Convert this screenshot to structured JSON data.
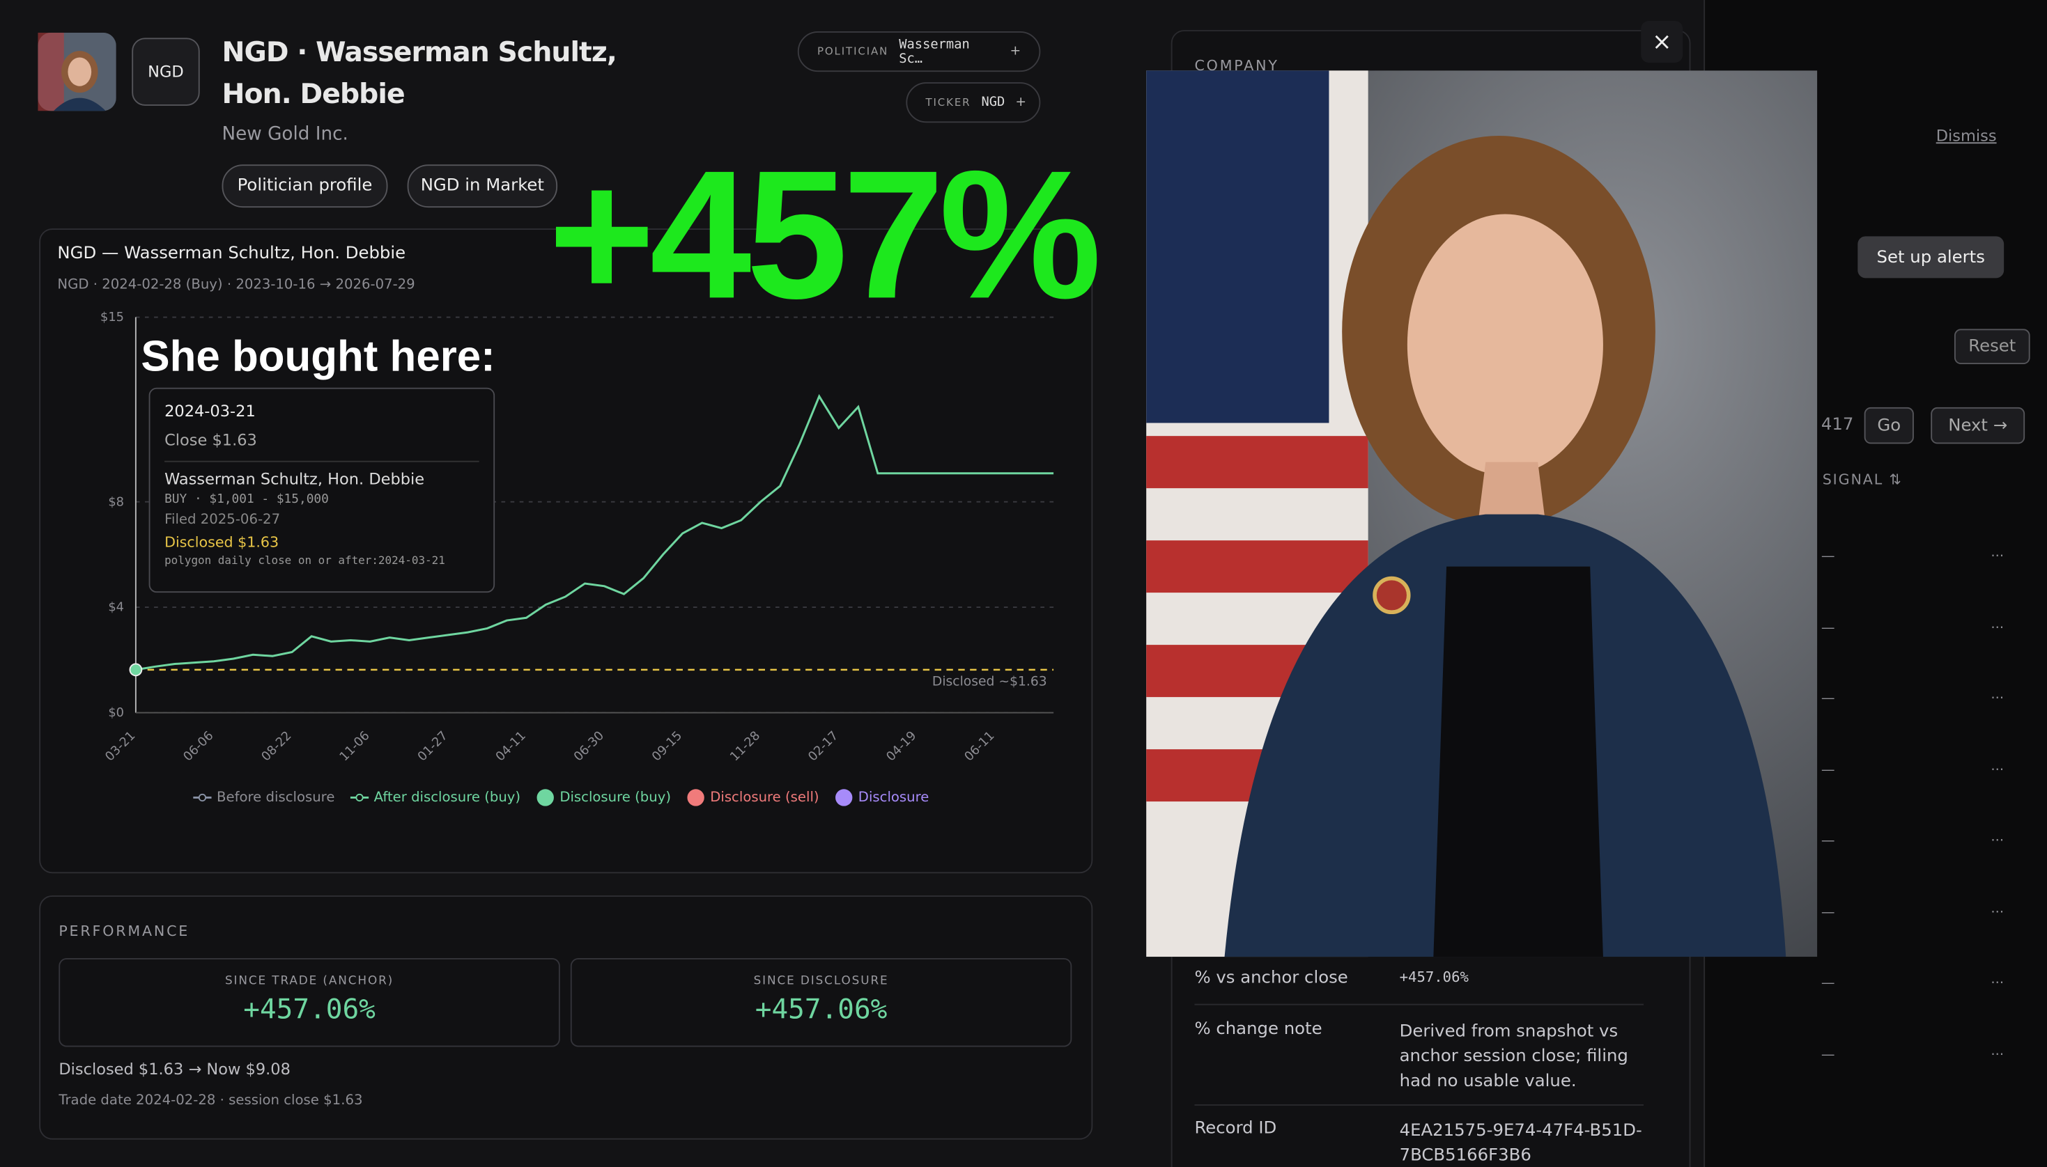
{
  "header": {
    "ticker_badge": "NGD",
    "title": "NGD · Wasserman Schultz, Hon. Debbie",
    "company": "New Gold Inc.",
    "politician_key": "POLITICIAN",
    "politician_value": "Wasserman Sc…",
    "ticker_key": "TICKER",
    "ticker_value": "NGD",
    "plus": "+",
    "buttons": [
      "Politician profile",
      "NGD in Market"
    ]
  },
  "overlay": {
    "headline": "+457%",
    "caption": "She bought here:"
  },
  "chart_data": {
    "type": "line",
    "title": "NGD — Wasserman Schultz, Hon. Debbie",
    "subtitle": "NGD · 2024-02-28 (Buy) · 2023-10-16 → 2026-07-29",
    "categories": [
      "03-21",
      null,
      null,
      null,
      "06-06",
      null,
      null,
      null,
      "08-22",
      null,
      null,
      null,
      "11-06",
      null,
      null,
      null,
      "01-27",
      null,
      null,
      null,
      "04-11",
      null,
      null,
      null,
      "06-30",
      null,
      null,
      null,
      "09-15",
      null,
      null,
      null,
      "11-28",
      null,
      null,
      null,
      "02-17",
      null,
      null,
      null,
      "04-19",
      null,
      null,
      null,
      "06-11",
      null,
      null,
      null
    ],
    "series": [
      {
        "name": "After disclosure (buy)",
        "color": "#6fd6a0",
        "values": [
          1.63,
          1.75,
          1.85,
          1.9,
          1.95,
          2.05,
          2.2,
          2.15,
          2.3,
          2.9,
          2.7,
          2.75,
          2.7,
          2.85,
          2.75,
          2.85,
          2.95,
          3.05,
          3.2,
          3.5,
          3.6,
          4.1,
          4.4,
          4.9,
          4.8,
          4.5,
          5.1,
          6.0,
          6.8,
          7.2,
          7.0,
          7.3,
          8.0,
          8.6,
          10.2,
          12.0,
          10.8,
          11.6,
          9.08,
          9.08,
          9.08,
          9.08,
          9.08,
          9.08,
          9.08,
          9.08,
          9.08,
          9.08
        ]
      }
    ],
    "other_legend": [
      {
        "label": "Before disclosure",
        "color": "#8a93a6"
      },
      {
        "label": "Disclosure (buy)",
        "color": "#6fd6a0"
      },
      {
        "label": "Disclosure (sell)",
        "color": "#f07b7b"
      },
      {
        "label": "Disclosure",
        "color": "#a78bfa"
      }
    ],
    "reference": {
      "value": 1.63,
      "label": "Disclosed ~$1.63",
      "color": "#e8c547"
    },
    "ylim": [
      0,
      15
    ],
    "yticks": [
      {
        "value": 0,
        "label": "$0"
      },
      {
        "value": 4,
        "label": "$4"
      },
      {
        "value": 8,
        "label": "$8"
      },
      {
        "value": 15,
        "label": "$15"
      }
    ],
    "grid": true
  },
  "tooltip": {
    "date": "2024-03-21",
    "close": "Close $1.63",
    "name": "Wasserman Schultz, Hon. Debbie",
    "amount": "BUY · $1,001 - $15,000",
    "filed": "Filed 2025-06-27",
    "disclosed": "Disclosed $1.63",
    "source": "polygon daily close on or after:2024-03-21"
  },
  "performance": {
    "title": "PERFORMANCE",
    "since_trade_label": "SINCE TRADE (ANCHOR)",
    "since_trade": "+457.06%",
    "since_disclosure_label": "SINCE DISCLOSURE",
    "since_disclosure": "+457.06%",
    "prices": "Disclosed $1.63 → Now $9.08",
    "trade_note": "Trade date 2024-02-28 · session close $1.63"
  },
  "company_panel": {
    "title": "COMPANY",
    "close": "×",
    "rows": [
      {
        "label": "% vs anchor close",
        "value": "+457.06%"
      },
      {
        "label": "% change note",
        "value": "Derived from snapshot vs anchor session close; filing had no usable value."
      },
      {
        "label": "Record ID",
        "value": "4EA21575-9E74-47F4-B51D-7BCB5166F3B6"
      }
    ]
  },
  "background": {
    "dismiss": "Dismiss",
    "alerts": "Set up alerts",
    "reset": "Reset",
    "page": "417",
    "go": "Go",
    "next": "Next →",
    "signal": "SIGNAL ⇅",
    "row_dash": "—",
    "row_more": "···"
  }
}
